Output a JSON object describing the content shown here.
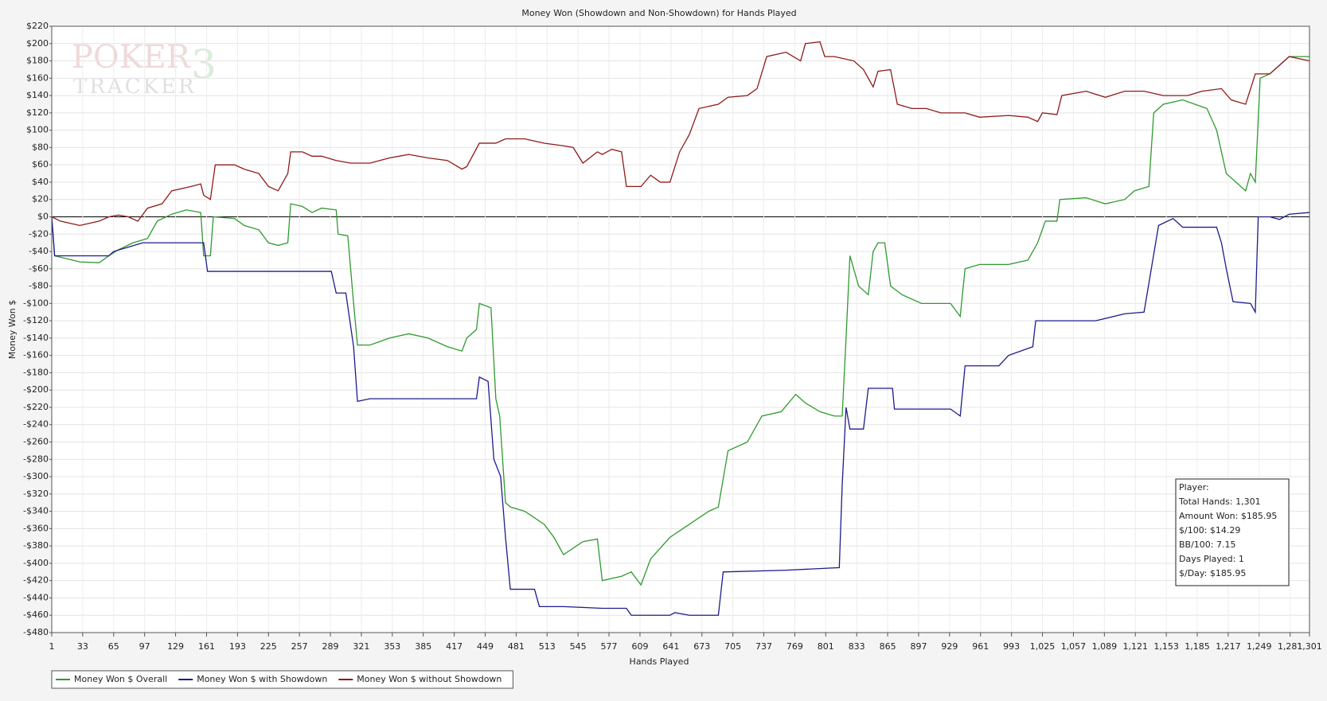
{
  "chart_data": {
    "type": "line",
    "title": "Money Won (Showdown and Non-Showdown) for Hands Played",
    "x_label": "Hands Played",
    "y_label": "Money Won $",
    "watermark": [
      "POKER",
      "3",
      "TRACKER"
    ],
    "grid": true,
    "legend": "bottom-left",
    "xlim": [
      1,
      1301
    ],
    "ylim": [
      -480,
      220
    ],
    "xticks": [
      1,
      33,
      65,
      97,
      129,
      161,
      193,
      225,
      257,
      289,
      321,
      353,
      385,
      417,
      449,
      481,
      513,
      545,
      577,
      609,
      641,
      673,
      705,
      737,
      769,
      801,
      833,
      865,
      897,
      929,
      961,
      993,
      {
        "value": 1025,
        "label": "1,025"
      },
      {
        "value": 1057,
        "label": "1,057"
      },
      {
        "value": 1089,
        "label": "1,089"
      },
      {
        "value": 1121,
        "label": "1,121"
      },
      {
        "value": 1153,
        "label": "1,153"
      },
      {
        "value": 1185,
        "label": "1,185"
      },
      {
        "value": 1217,
        "label": "1,217"
      },
      {
        "value": 1249,
        "label": "1,249"
      },
      {
        "value": 1281,
        "label": "1,281"
      },
      {
        "value": 1301,
        "label": "1,301"
      }
    ],
    "yticks": [
      {
        "value": 220,
        "label": "$220"
      },
      {
        "value": 200,
        "label": "$200"
      },
      {
        "value": 180,
        "label": "$180"
      },
      {
        "value": 160,
        "label": "$160"
      },
      {
        "value": 140,
        "label": "$140"
      },
      {
        "value": 120,
        "label": "$120"
      },
      {
        "value": 100,
        "label": "$100"
      },
      {
        "value": 80,
        "label": "$80"
      },
      {
        "value": 60,
        "label": "$60"
      },
      {
        "value": 40,
        "label": "$40"
      },
      {
        "value": 20,
        "label": "$20"
      },
      {
        "value": 0,
        "label": "$0"
      },
      {
        "value": -20,
        "label": "-$20"
      },
      {
        "value": -40,
        "label": "-$40"
      },
      {
        "value": -60,
        "label": "-$60"
      },
      {
        "value": -80,
        "label": "-$80"
      },
      {
        "value": -100,
        "label": "-$100"
      },
      {
        "value": -120,
        "label": "-$120"
      },
      {
        "value": -140,
        "label": "-$140"
      },
      {
        "value": -160,
        "label": "-$160"
      },
      {
        "value": -180,
        "label": "-$180"
      },
      {
        "value": -200,
        "label": "-$200"
      },
      {
        "value": -220,
        "label": "-$220"
      },
      {
        "value": -240,
        "label": "-$240"
      },
      {
        "value": -260,
        "label": "-$260"
      },
      {
        "value": -280,
        "label": "-$280"
      },
      {
        "value": -300,
        "label": "-$300"
      },
      {
        "value": -320,
        "label": "-$320"
      },
      {
        "value": -340,
        "label": "-$340"
      },
      {
        "value": -360,
        "label": "-$360"
      },
      {
        "value": -380,
        "label": "-$380"
      },
      {
        "value": -400,
        "label": "-$400"
      },
      {
        "value": -420,
        "label": "-$420"
      },
      {
        "value": -440,
        "label": "-$440"
      },
      {
        "value": -460,
        "label": "-$460"
      },
      {
        "value": -480,
        "label": "-$480"
      }
    ],
    "info_box": [
      "Player:",
      "Total Hands: 1,301",
      "Amount Won: $185.95",
      "$/100: $14.29",
      "BB/100: 7.15",
      "Days Played: 1",
      "$/Day: $185.95"
    ],
    "series": [
      {
        "name": "Money Won $ Overall",
        "color": "#2f9a2f",
        "x": [
          1,
          4,
          30,
          50,
          60,
          70,
          85,
          100,
          110,
          125,
          140,
          155,
          158,
          165,
          168,
          190,
          200,
          215,
          225,
          235,
          245,
          248,
          260,
          270,
          280,
          295,
          297,
          307,
          313,
          317,
          330,
          350,
          370,
          390,
          410,
          425,
          430,
          440,
          443,
          455,
          460,
          464,
          470,
          475,
          490,
          510,
          520,
          530,
          550,
          565,
          570,
          590,
          600,
          610,
          620,
          640,
          660,
          680,
          690,
          700,
          720,
          735,
          755,
          770,
          780,
          795,
          810,
          818,
          822,
          826,
          835,
          845,
          850,
          855,
          862,
          868,
          880,
          900,
          930,
          940,
          945,
          960,
          990,
          1010,
          1020,
          1028,
          1040,
          1043,
          1070,
          1090,
          1110,
          1120,
          1135,
          1140,
          1150,
          1170,
          1195,
          1205,
          1215,
          1230,
          1235,
          1240,
          1245,
          1250,
          1260,
          1280,
          1301
        ],
        "values": [
          0,
          -45,
          -52,
          -53,
          -45,
          -38,
          -30,
          -25,
          -5,
          3,
          8,
          5,
          -45,
          -45,
          0,
          -2,
          -10,
          -15,
          -30,
          -33,
          -30,
          15,
          12,
          5,
          10,
          8,
          -20,
          -22,
          -100,
          -148,
          -148,
          -140,
          -135,
          -140,
          -150,
          -155,
          -140,
          -130,
          -100,
          -105,
          -210,
          -230,
          -330,
          -335,
          -340,
          -355,
          -370,
          -390,
          -375,
          -372,
          -420,
          -415,
          -410,
          -425,
          -395,
          -370,
          -355,
          -340,
          -335,
          -270,
          -260,
          -230,
          -225,
          -205,
          -215,
          -225,
          -230,
          -230,
          -140,
          -45,
          -80,
          -90,
          -40,
          -30,
          -30,
          -80,
          -90,
          -100,
          -100,
          -115,
          -60,
          -55,
          -55,
          -50,
          -30,
          -5,
          -5,
          20,
          22,
          15,
          20,
          30,
          35,
          120,
          130,
          135,
          125,
          100,
          50,
          35,
          30,
          50,
          40,
          160,
          165,
          185,
          185
        ]
      },
      {
        "name": "Money Won $ with Showdown",
        "color": "#1c1c8e",
        "x": [
          1,
          4,
          50,
          60,
          65,
          80,
          95,
          158,
          162,
          290,
          295,
          305,
          313,
          317,
          330,
          440,
          443,
          452,
          458,
          465,
          470,
          475,
          500,
          505,
          530,
          570,
          595,
          600,
          640,
          645,
          660,
          690,
          695,
          760,
          815,
          818,
          822,
          826,
          840,
          845,
          870,
          872,
          930,
          940,
          945,
          980,
          990,
          1015,
          1018,
          1080,
          1110,
          1130,
          1145,
          1160,
          1170,
          1205,
          1210,
          1215,
          1222,
          1240,
          1245,
          1248,
          1260,
          1270,
          1280,
          1301
        ],
        "values": [
          0,
          -45,
          -45,
          -45,
          -40,
          -35,
          -30,
          -30,
          -63,
          -63,
          -88,
          -88,
          -150,
          -213,
          -210,
          -210,
          -185,
          -190,
          -280,
          -300,
          -370,
          -430,
          -430,
          -450,
          -450,
          -452,
          -452,
          -460,
          -460,
          -457,
          -460,
          -460,
          -410,
          -408,
          -405,
          -310,
          -220,
          -245,
          -245,
          -198,
          -198,
          -222,
          -222,
          -230,
          -172,
          -172,
          -160,
          -150,
          -120,
          -120,
          -112,
          -110,
          -10,
          -2,
          -12,
          -12,
          -30,
          -60,
          -98,
          -100,
          -110,
          0,
          0,
          -3,
          3,
          5
        ]
      },
      {
        "name": "Money Won $ without Showdown",
        "color": "#8e1a1a",
        "x": [
          1,
          10,
          30,
          50,
          60,
          70,
          80,
          90,
          100,
          115,
          125,
          145,
          155,
          158,
          165,
          170,
          190,
          200,
          215,
          225,
          235,
          245,
          248,
          260,
          270,
          280,
          295,
          310,
          330,
          350,
          370,
          390,
          410,
          425,
          430,
          443,
          460,
          470,
          490,
          510,
          530,
          540,
          550,
          565,
          570,
          580,
          590,
          595,
          610,
          620,
          630,
          640,
          650,
          660,
          670,
          690,
          700,
          720,
          730,
          740,
          760,
          775,
          780,
          795,
          800,
          810,
          830,
          840,
          850,
          855,
          868,
          875,
          890,
          905,
          920,
          945,
          960,
          990,
          1010,
          1020,
          1025,
          1040,
          1045,
          1070,
          1090,
          1110,
          1130,
          1150,
          1175,
          1190,
          1210,
          1220,
          1235,
          1245,
          1260,
          1280,
          1301
        ],
        "values": [
          0,
          -5,
          -10,
          -5,
          0,
          2,
          0,
          -5,
          10,
          15,
          30,
          35,
          38,
          25,
          20,
          60,
          60,
          55,
          50,
          35,
          30,
          50,
          75,
          75,
          70,
          70,
          65,
          62,
          62,
          68,
          72,
          68,
          65,
          55,
          58,
          85,
          85,
          90,
          90,
          85,
          82,
          80,
          62,
          75,
          72,
          78,
          75,
          35,
          35,
          48,
          40,
          40,
          75,
          95,
          125,
          130,
          138,
          140,
          148,
          185,
          190,
          180,
          200,
          202,
          185,
          185,
          180,
          170,
          150,
          168,
          170,
          130,
          125,
          125,
          120,
          120,
          115,
          117,
          115,
          110,
          120,
          118,
          140,
          145,
          138,
          145,
          145,
          140,
          140,
          145,
          148,
          135,
          130,
          165,
          165,
          185,
          180
        ]
      }
    ]
  }
}
